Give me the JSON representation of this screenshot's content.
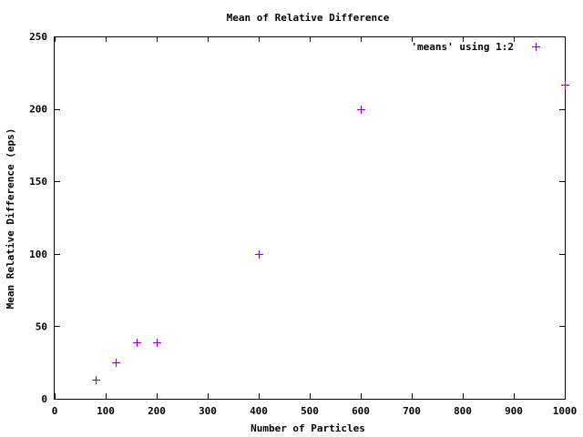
{
  "chart_data": {
    "type": "scatter",
    "title": "Mean of Relative Difference",
    "xlabel": "Number of Particles",
    "ylabel": "Mean Relative Difference (eps)",
    "xlim": [
      0,
      1000
    ],
    "ylim": [
      0,
      250
    ],
    "xticks": [
      0,
      100,
      200,
      300,
      400,
      500,
      600,
      700,
      800,
      900,
      1000
    ],
    "yticks": [
      0,
      50,
      100,
      150,
      200,
      250
    ],
    "grid": false,
    "legend_position": "top-right",
    "series": [
      {
        "name": "'means' using 1:2",
        "marker": "plus",
        "color": "#9400d3",
        "points": [
          {
            "x": 80,
            "y": 13
          },
          {
            "x": 120,
            "y": 25
          },
          {
            "x": 160,
            "y": 39
          },
          {
            "x": 200,
            "y": 39
          },
          {
            "x": 400,
            "y": 100
          },
          {
            "x": 600,
            "y": 200
          },
          {
            "x": 1000,
            "y": 217
          }
        ]
      }
    ]
  }
}
